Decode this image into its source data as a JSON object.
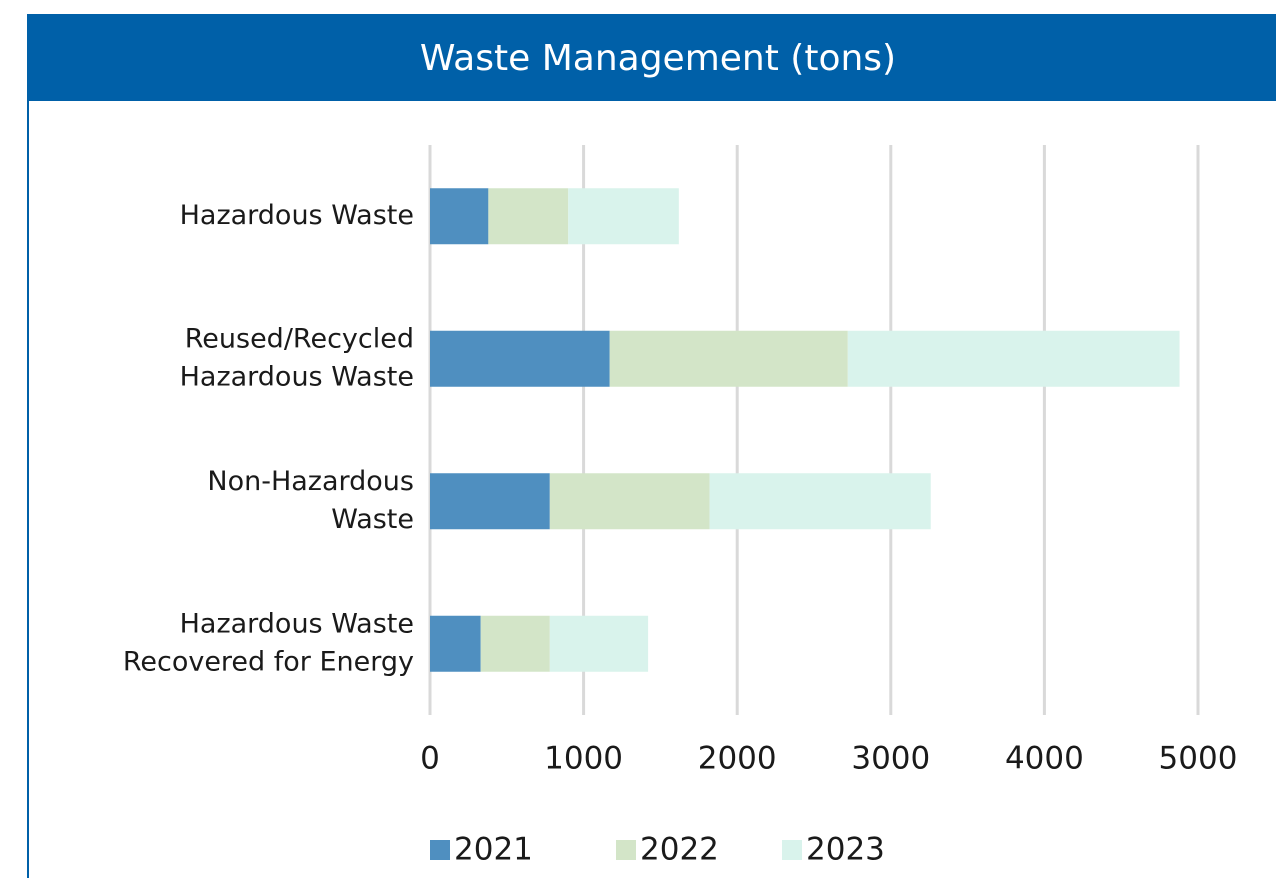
{
  "chart_data": {
    "type": "stacked-bar-horizontal",
    "title": "Waste Management (tons)",
    "categories": [
      [
        "Hazardous Waste"
      ],
      [
        "Reused/Recycled",
        "Hazardous Waste"
      ],
      [
        "Non-Hazardous",
        "Waste"
      ],
      [
        "Hazardous Waste",
        "Recovered for Energy"
      ]
    ],
    "series": [
      {
        "name": "2021",
        "color": "#4f8fc0",
        "values": [
          380,
          1170,
          780,
          330
        ]
      },
      {
        "name": "2022",
        "color": "#d3e5c8",
        "values": [
          520,
          1550,
          1040,
          450
        ]
      },
      {
        "name": "2023",
        "color": "#d9f3ec",
        "values": [
          720,
          2160,
          1440,
          640
        ]
      }
    ],
    "xlim": [
      0,
      5000
    ],
    "xticks": [
      0,
      1000,
      2000,
      3000,
      4000,
      5000
    ],
    "grid": true,
    "legend": "bottom"
  }
}
